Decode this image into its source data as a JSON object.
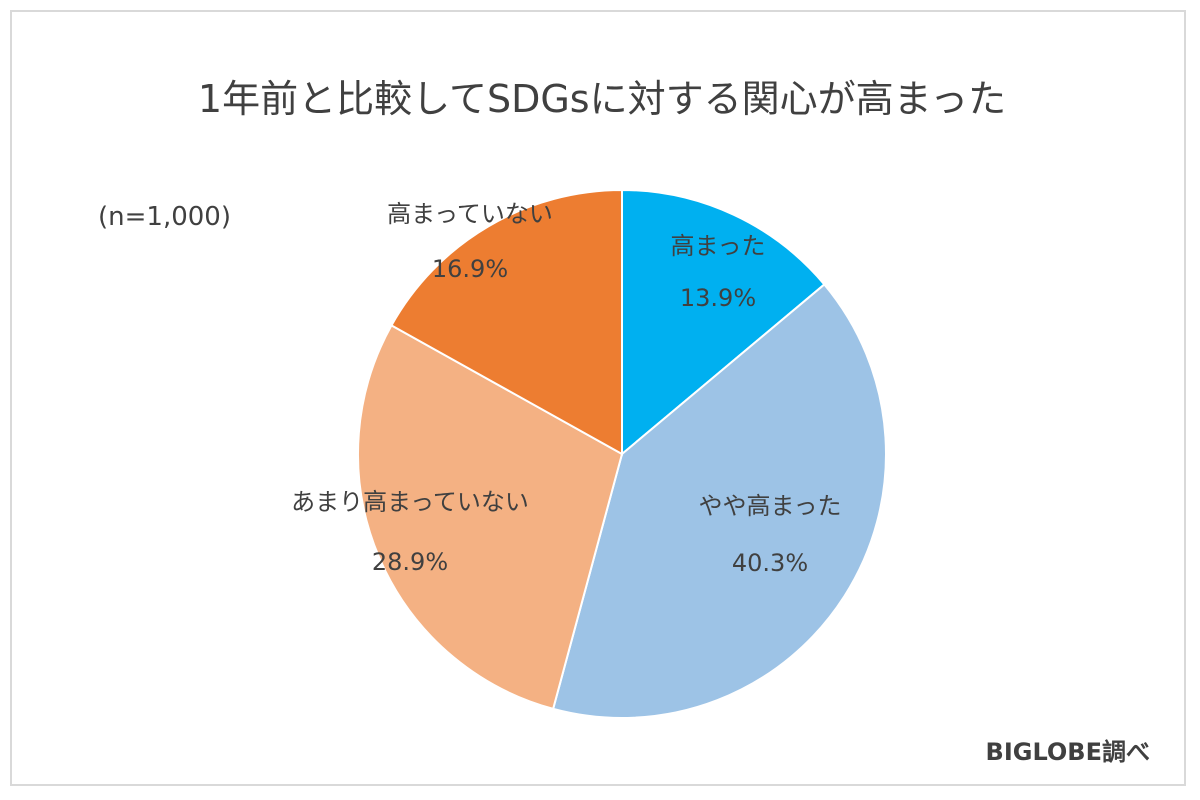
{
  "chart_data": {
    "type": "pie",
    "title": "1年前と比較してSDGsに対する関心が高まった",
    "note": "(n=1,000)",
    "source": "BIGLOBE調べ",
    "start": "12 o'clock",
    "direction": "clockwise",
    "slices": [
      {
        "label": "高まった",
        "value": 13.9,
        "display": "13.9%",
        "color": "#00b0f0"
      },
      {
        "label": "やや高まった",
        "value": 40.3,
        "display": "40.3%",
        "color": "#9dc3e6"
      },
      {
        "label": "あまり高まっていない",
        "value": 28.9,
        "display": "28.9%",
        "color": "#f4b183"
      },
      {
        "label": "高まっていない",
        "value": 16.9,
        "display": "16.9%",
        "color": "#ed7d31"
      }
    ]
  }
}
